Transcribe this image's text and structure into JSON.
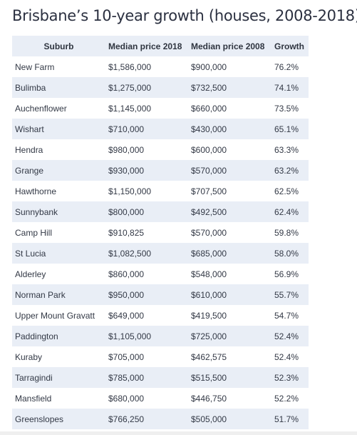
{
  "title": "Brisbane’s 10-year growth (houses, 2008-2018)",
  "columns": [
    "Suburb",
    "Median price 2018",
    "Median price 2008",
    "Growth"
  ],
  "rows": [
    [
      "New Farm",
      "$1,586,000",
      "$900,000",
      "76.2%"
    ],
    [
      "Bulimba",
      "$1,275,000",
      "$732,500",
      "74.1%"
    ],
    [
      "Auchenflower",
      "$1,145,000",
      "$660,000",
      "73.5%"
    ],
    [
      "Wishart",
      "$710,000",
      "$430,000",
      "65.1%"
    ],
    [
      "Hendra",
      "$980,000",
      "$600,000",
      "63.3%"
    ],
    [
      "Grange",
      "$930,000",
      "$570,000",
      "63.2%"
    ],
    [
      "Hawthorne",
      "$1,150,000",
      "$707,500",
      "62.5%"
    ],
    [
      "Sunnybank",
      "$800,000",
      "$492,500",
      "62.4%"
    ],
    [
      "Camp Hill",
      "$910,825",
      "$570,000",
      "59.8%"
    ],
    [
      "St Lucia",
      "$1,082,500",
      "$685,000",
      "58.0%"
    ],
    [
      "Alderley",
      "$860,000",
      "$548,000",
      "56.9%"
    ],
    [
      "Norman Park",
      "$950,000",
      "$610,000",
      "55.7%"
    ],
    [
      "Upper Mount Gravatt",
      "$649,000",
      "$419,500",
      "54.7%"
    ],
    [
      "Paddington",
      "$1,105,000",
      "$725,000",
      "52.4%"
    ],
    [
      "Kuraby",
      "$705,000",
      "$462,575",
      "52.4%"
    ],
    [
      "Tarragindi",
      "$785,000",
      "$515,500",
      "52.3%"
    ],
    [
      "Mansfield",
      "$680,000",
      "$446,750",
      "52.2%"
    ],
    [
      "Greenslopes",
      "$766,250",
      "$505,000",
      "51.7%"
    ]
  ],
  "colors": {
    "header_bg": "#e9eef6",
    "stripe_bg": "#e9eef6",
    "text": "#333946",
    "title": "#2b3040"
  },
  "chart_data": {
    "type": "table",
    "title": "Brisbane’s 10-year growth (houses, 2008-2018)",
    "columns": [
      "Suburb",
      "Median price 2018",
      "Median price 2008",
      "Growth"
    ],
    "rows": [
      [
        "New Farm",
        1586000,
        900000,
        76.2
      ],
      [
        "Bulimba",
        1275000,
        732500,
        74.1
      ],
      [
        "Auchenflower",
        1145000,
        660000,
        73.5
      ],
      [
        "Wishart",
        710000,
        430000,
        65.1
      ],
      [
        "Hendra",
        980000,
        600000,
        63.3
      ],
      [
        "Grange",
        930000,
        570000,
        63.2
      ],
      [
        "Hawthorne",
        1150000,
        707500,
        62.5
      ],
      [
        "Sunnybank",
        800000,
        492500,
        62.4
      ],
      [
        "Camp Hill",
        910825,
        570000,
        59.8
      ],
      [
        "St Lucia",
        1082500,
        685000,
        58.0
      ],
      [
        "Alderley",
        860000,
        548000,
        56.9
      ],
      [
        "Norman Park",
        950000,
        610000,
        55.7
      ],
      [
        "Upper Mount Gravatt",
        649000,
        419500,
        54.7
      ],
      [
        "Paddington",
        1105000,
        725000,
        52.4
      ],
      [
        "Kuraby",
        705000,
        462575,
        52.4
      ],
      [
        "Tarragindi",
        785000,
        515500,
        52.3
      ],
      [
        "Mansfield",
        680000,
        446750,
        52.2
      ],
      [
        "Greenslopes",
        766250,
        505000,
        51.7
      ]
    ]
  }
}
